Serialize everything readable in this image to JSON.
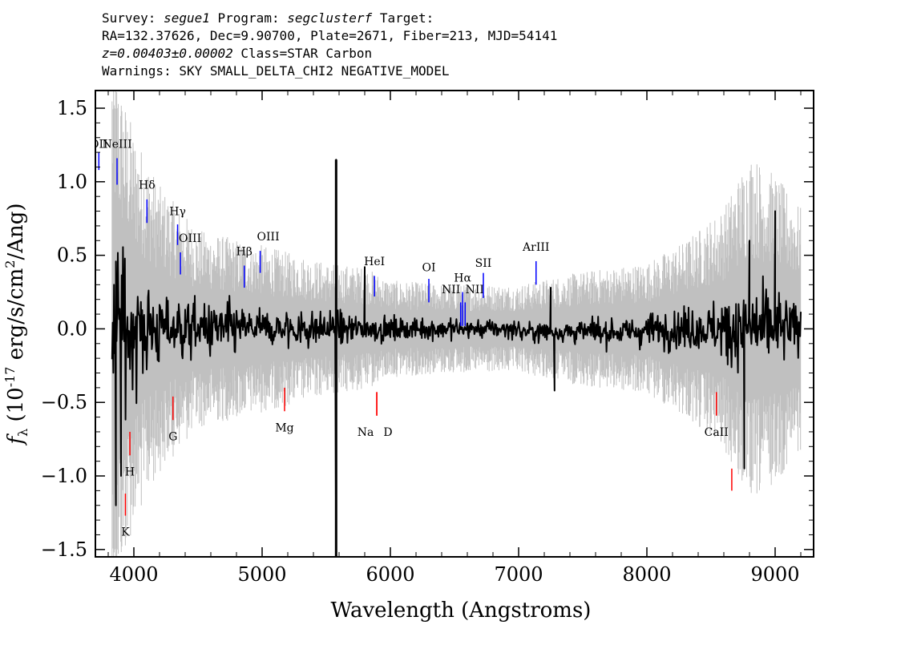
{
  "header": {
    "line1": {
      "survey_label": "Survey:",
      "survey": "segue1",
      "program_label": "Program:",
      "program": "segclusterf",
      "target_label": "Target:"
    },
    "line2": "RA=132.37626, Dec=9.90700, Plate=2671, Fiber=213, MJD=54141",
    "line3": {
      "z": "z=0.00403±0.00002",
      "cls": "Class=STAR Carbon"
    },
    "line4": "Warnings: SKY SMALL_DELTA_CHI2 NEGATIVE_MODEL"
  },
  "chart_data": {
    "type": "line",
    "xlabel": "Wavelength (Angstroms)",
    "ylabel_main": "f",
    "ylabel_sub": "λ",
    "ylabel_rest": "(10",
    "ylabel_exp": "-17",
    "ylabel_tail": "erg/s/cm",
    "ylabel_exp2": "2",
    "ylabel_end": "/Ang)",
    "xlim": [
      3700,
      9300
    ],
    "ylim": [
      -1.55,
      1.62
    ],
    "xticks": [
      4000,
      5000,
      6000,
      7000,
      8000,
      9000
    ],
    "xtick_labels": [
      "4000",
      "5000",
      "6000",
      "7000",
      "8000",
      "9000"
    ],
    "yticks": [
      -1.5,
      -1.0,
      -0.5,
      0.0,
      0.5,
      1.0,
      1.5
    ],
    "ytick_labels": [
      "−1.5",
      "−1.0",
      "−0.5",
      "0.0",
      "0.5",
      "1.0",
      "1.5"
    ],
    "series": [
      {
        "role": "error",
        "color": "#c0c0c0",
        "anchors": [
          [
            3830,
            1.3
          ],
          [
            3900,
            1.1
          ],
          [
            4000,
            0.9
          ],
          [
            4200,
            0.65
          ],
          [
            4500,
            0.45
          ],
          [
            5000,
            0.38
          ],
          [
            5500,
            0.3
          ],
          [
            5800,
            0.28
          ],
          [
            6000,
            0.22
          ],
          [
            6500,
            0.2
          ],
          [
            7000,
            0.2
          ],
          [
            7500,
            0.26
          ],
          [
            8000,
            0.3
          ],
          [
            8300,
            0.4
          ],
          [
            8600,
            0.55
          ],
          [
            8800,
            0.8
          ],
          [
            9000,
            0.7
          ],
          [
            9200,
            0.55
          ]
        ]
      },
      {
        "role": "flux",
        "color": "#000000",
        "anchors": [
          [
            3830,
            0.95
          ],
          [
            3900,
            0.8
          ],
          [
            4000,
            0.55
          ],
          [
            4200,
            0.4
          ],
          [
            4500,
            0.28
          ],
          [
            5000,
            0.2
          ],
          [
            5500,
            0.18
          ],
          [
            6000,
            0.12
          ],
          [
            6500,
            0.1
          ],
          [
            7000,
            0.1
          ],
          [
            7500,
            0.12
          ],
          [
            8000,
            0.16
          ],
          [
            8500,
            0.25
          ],
          [
            8800,
            0.45
          ],
          [
            9000,
            0.35
          ],
          [
            9200,
            0.3
          ]
        ],
        "spikes": [
          [
            3860,
            -1.2
          ],
          [
            3900,
            -1.0
          ],
          [
            5577,
            1.15
          ],
          [
            5577,
            -1.55
          ],
          [
            5800,
            0.42
          ],
          [
            7250,
            0.28
          ],
          [
            7280,
            -0.42
          ],
          [
            8760,
            -0.95
          ],
          [
            8800,
            0.6
          ],
          [
            9000,
            0.8
          ]
        ]
      }
    ],
    "emission_lines": [
      {
        "label": "OII",
        "x": 3727,
        "y": 1.21,
        "yhi": 1.2,
        "ylo": 1.08,
        "dx": 0
      },
      {
        "label": "NeIII",
        "x": 3869,
        "y": 1.21,
        "yhi": 1.16,
        "ylo": 0.98,
        "dx": 0
      },
      {
        "label": "Hδ",
        "x": 4102,
        "y": 0.93,
        "yhi": 0.88,
        "ylo": 0.72,
        "dx": 0
      },
      {
        "label": "Hγ",
        "x": 4341,
        "y": 0.75,
        "yhi": 0.71,
        "ylo": 0.57,
        "dx": 0
      },
      {
        "label": "OIII",
        "x": 4363,
        "y": 0.57,
        "yhi": 0.52,
        "ylo": 0.37,
        "dx": 12
      },
      {
        "label": "Hβ",
        "x": 4861,
        "y": 0.48,
        "yhi": 0.43,
        "ylo": 0.28,
        "dx": 0
      },
      {
        "label": "OIII",
        "x": 4985,
        "y": 0.58,
        "yhi": 0.53,
        "ylo": 0.38,
        "dx": 10
      },
      {
        "label": "HeI",
        "x": 5876,
        "y": 0.41,
        "yhi": 0.36,
        "ylo": 0.22,
        "dx": 0
      },
      {
        "label": "OI",
        "x": 6300,
        "y": 0.37,
        "yhi": 0.34,
        "ylo": 0.18,
        "dx": 0
      },
      {
        "label": "NII",
        "x": 6548,
        "y": 0.22,
        "yhi": 0.18,
        "ylo": 0.02,
        "dx": -12
      },
      {
        "label": "Hα",
        "x": 6563,
        "y": 0.3,
        "yhi": 0.25,
        "ylo": 0.02,
        "dx": 0
      },
      {
        "label": "NII",
        "x": 6583,
        "y": 0.22,
        "yhi": 0.18,
        "ylo": 0.02,
        "dx": 12
      },
      {
        "label": "SII",
        "x": 6725,
        "y": 0.4,
        "yhi": 0.38,
        "ylo": 0.21,
        "dx": 0
      },
      {
        "label": "ArIII",
        "x": 7136,
        "y": 0.51,
        "yhi": 0.46,
        "ylo": 0.3,
        "dx": 0
      }
    ],
    "absorption_lines": [
      {
        "label": "K",
        "x": 3934,
        "y": -1.33,
        "yhi": -1.12,
        "ylo": -1.27
      },
      {
        "label": "H",
        "x": 3969,
        "y": -0.92,
        "yhi": -0.7,
        "ylo": -0.86
      },
      {
        "label": "G",
        "x": 4305,
        "y": -0.68,
        "yhi": -0.46,
        "ylo": -0.62
      },
      {
        "label": "Mg",
        "x": 5175,
        "y": -0.62,
        "yhi": -0.4,
        "ylo": -0.56
      },
      {
        "label": "Na",
        "x": 5894,
        "y": -0.65,
        "yhi": -0.43,
        "ylo": -0.59,
        "dx": -14
      },
      {
        "label": "D",
        "x": 5894,
        "y": -0.65,
        "yhi": -0.43,
        "ylo": -0.59,
        "dx": 14
      },
      {
        "label": "CaII",
        "x": 8542,
        "y": -0.65,
        "yhi": -0.43,
        "ylo": -0.59
      },
      {
        "label": "",
        "x": 8662,
        "y": -1.1,
        "yhi": -0.95,
        "ylo": -1.1
      }
    ],
    "colors": {
      "emission": "#0000ff",
      "absorption": "#ff0000",
      "axis": "#000000"
    }
  }
}
